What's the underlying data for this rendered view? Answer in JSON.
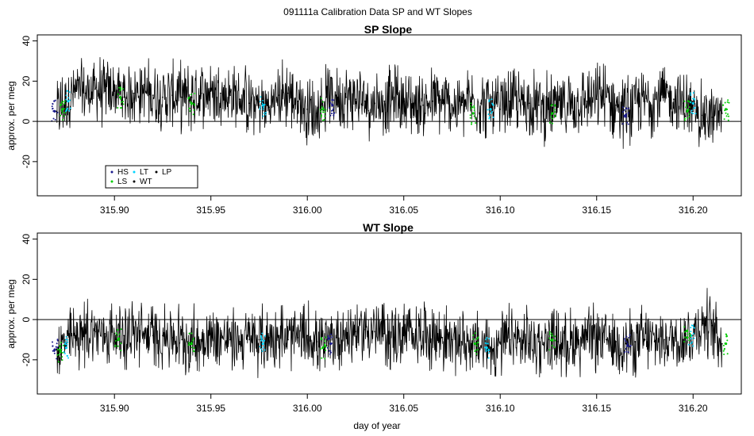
{
  "figure": {
    "title": "091111a   Calibration Data SP and WT Slopes"
  },
  "legend": {
    "entries": [
      {
        "label": "HS",
        "color": "#1a1a8c"
      },
      {
        "label": "LT",
        "color": "#00d5ff"
      },
      {
        "label": "LP",
        "color": "#000000"
      },
      {
        "label": "LS",
        "color": "#00cc00"
      },
      {
        "label": "WT",
        "color": "#000000"
      }
    ]
  },
  "chart_data": [
    {
      "type": "line",
      "title": "SP Slope",
      "xlabel": "",
      "ylabel": "approx. per meg",
      "xlim": [
        315.86,
        316.225
      ],
      "ylim": [
        -37,
        43
      ],
      "xticks": [
        315.9,
        315.95,
        316.0,
        316.05,
        316.1,
        316.15,
        316.2
      ],
      "xtick_labels": [
        "315.90",
        "315.95",
        "316.00",
        "316.05",
        "316.10",
        "316.15",
        "316.20"
      ],
      "yticks": [
        -20,
        0,
        20,
        40
      ],
      "ytick_labels": [
        "-20",
        "0",
        "20",
        "40"
      ],
      "reference_line_y": 0,
      "series": [
        {
          "name": "WT",
          "color": "#000000",
          "x": [
            315.87,
            315.875,
            315.88,
            315.885,
            315.89,
            315.895,
            315.9,
            315.905,
            315.91,
            315.915,
            315.92,
            315.925,
            315.93,
            315.935,
            315.94,
            315.945,
            315.95,
            315.955,
            315.96,
            315.965,
            315.97,
            315.975,
            315.98,
            315.985,
            315.99,
            315.995,
            316.0,
            316.005,
            316.01,
            316.015,
            316.02,
            316.025,
            316.03,
            316.035,
            316.04,
            316.045,
            316.05,
            316.055,
            316.06,
            316.065,
            316.07,
            316.075,
            316.08,
            316.085,
            316.09,
            316.095,
            316.1,
            316.105,
            316.11,
            316.115,
            316.12,
            316.125,
            316.13,
            316.135,
            316.14,
            316.145,
            316.15,
            316.155,
            316.16,
            316.165,
            316.17,
            316.175,
            316.18,
            316.185,
            316.19,
            316.195,
            316.2,
            316.205,
            316.21,
            316.215
          ],
          "y": [
            5,
            10,
            15,
            14,
            16,
            15,
            15,
            12,
            14,
            15,
            13,
            12,
            13,
            12,
            12,
            14,
            15,
            14,
            13,
            11,
            9,
            8,
            7,
            13,
            14,
            10,
            6,
            4,
            12,
            13,
            12,
            11,
            10,
            9,
            10,
            12,
            10,
            9,
            8,
            10,
            9,
            8,
            8,
            10,
            9,
            7,
            6,
            10,
            10,
            9,
            8,
            6,
            7,
            9,
            10,
            10,
            11,
            12,
            8,
            5,
            9,
            10,
            11,
            12,
            11,
            9,
            5,
            3,
            2,
            4
          ]
        },
        {
          "name": "HS",
          "color": "#1a1a8c",
          "x": [
            315.869,
            316.013,
            316.165
          ],
          "y": [
            5,
            8,
            3
          ]
        },
        {
          "name": "LT",
          "color": "#00d5ff",
          "x": [
            315.876,
            315.977,
            316.095,
            316.2
          ],
          "y": [
            10,
            8,
            6,
            9
          ]
        },
        {
          "name": "LS",
          "color": "#00cc00",
          "x": [
            315.873,
            315.903,
            315.94,
            316.008,
            316.086,
            316.127,
            316.197,
            316.217
          ],
          "y": [
            6,
            12,
            9,
            6,
            4,
            4,
            5,
            6
          ]
        }
      ]
    },
    {
      "type": "line",
      "title": "WT Slope",
      "xlabel": "day of year",
      "ylabel": "approx. per meg",
      "xlim": [
        315.86,
        316.225
      ],
      "ylim": [
        -37,
        43
      ],
      "xticks": [
        315.9,
        315.95,
        316.0,
        316.05,
        316.1,
        316.15,
        316.2
      ],
      "xtick_labels": [
        "315.90",
        "315.95",
        "316.00",
        "316.05",
        "316.10",
        "316.15",
        "316.20"
      ],
      "yticks": [
        -20,
        0,
        20,
        40
      ],
      "ytick_labels": [
        "-20",
        "0",
        "20",
        "40"
      ],
      "reference_line_y": 0,
      "series": [
        {
          "name": "WT",
          "color": "#000000",
          "x": [
            315.87,
            315.875,
            315.88,
            315.885,
            315.89,
            315.895,
            315.9,
            315.905,
            315.91,
            315.915,
            315.92,
            315.925,
            315.93,
            315.935,
            315.94,
            315.945,
            315.95,
            315.955,
            315.96,
            315.965,
            315.97,
            315.975,
            315.98,
            315.985,
            315.99,
            315.995,
            316.0,
            316.005,
            316.01,
            316.015,
            316.02,
            316.025,
            316.03,
            316.035,
            316.04,
            316.045,
            316.05,
            316.055,
            316.06,
            316.065,
            316.07,
            316.075,
            316.08,
            316.085,
            316.09,
            316.095,
            316.1,
            316.105,
            316.11,
            316.115,
            316.12,
            316.125,
            316.13,
            316.135,
            316.14,
            316.145,
            316.15,
            316.155,
            316.16,
            316.165,
            316.17,
            316.175,
            316.18,
            316.185,
            316.19,
            316.195,
            316.2,
            316.205,
            316.21,
            316.215
          ],
          "y": [
            -15,
            -12,
            -8,
            -7,
            -6,
            -7,
            -7,
            -8,
            -7,
            -7,
            -8,
            -8,
            -9,
            -10,
            -11,
            -10,
            -8,
            -9,
            -10,
            -11,
            -10,
            -10,
            -9,
            -8,
            -10,
            -9,
            -8,
            -11,
            -13,
            -9,
            -7,
            -6,
            -5,
            -6,
            -7,
            -9,
            -8,
            -7,
            -6,
            -8,
            -9,
            -10,
            -11,
            -12,
            -13,
            -14,
            -12,
            -10,
            -11,
            -12,
            -11,
            -10,
            -11,
            -11,
            -10,
            -10,
            -9,
            -10,
            -11,
            -12,
            -11,
            -10,
            -11,
            -10,
            -9,
            -10,
            -8,
            -2,
            -3,
            -12
          ]
        },
        {
          "name": "HS",
          "color": "#1a1a8c",
          "x": [
            315.869,
            316.012,
            316.166
          ],
          "y": [
            -15,
            -12,
            -13
          ]
        },
        {
          "name": "LT",
          "color": "#00d5ff",
          "x": [
            315.875,
            315.977,
            316.093,
            316.199
          ],
          "y": [
            -14,
            -12,
            -14,
            -8
          ]
        },
        {
          "name": "LS",
          "color": "#00cc00",
          "x": [
            315.872,
            315.902,
            315.94,
            316.008,
            316.087,
            316.127,
            316.197,
            316.217
          ],
          "y": [
            -16,
            -10,
            -12,
            -14,
            -12,
            -10,
            -9,
            -12
          ]
        }
      ]
    }
  ]
}
